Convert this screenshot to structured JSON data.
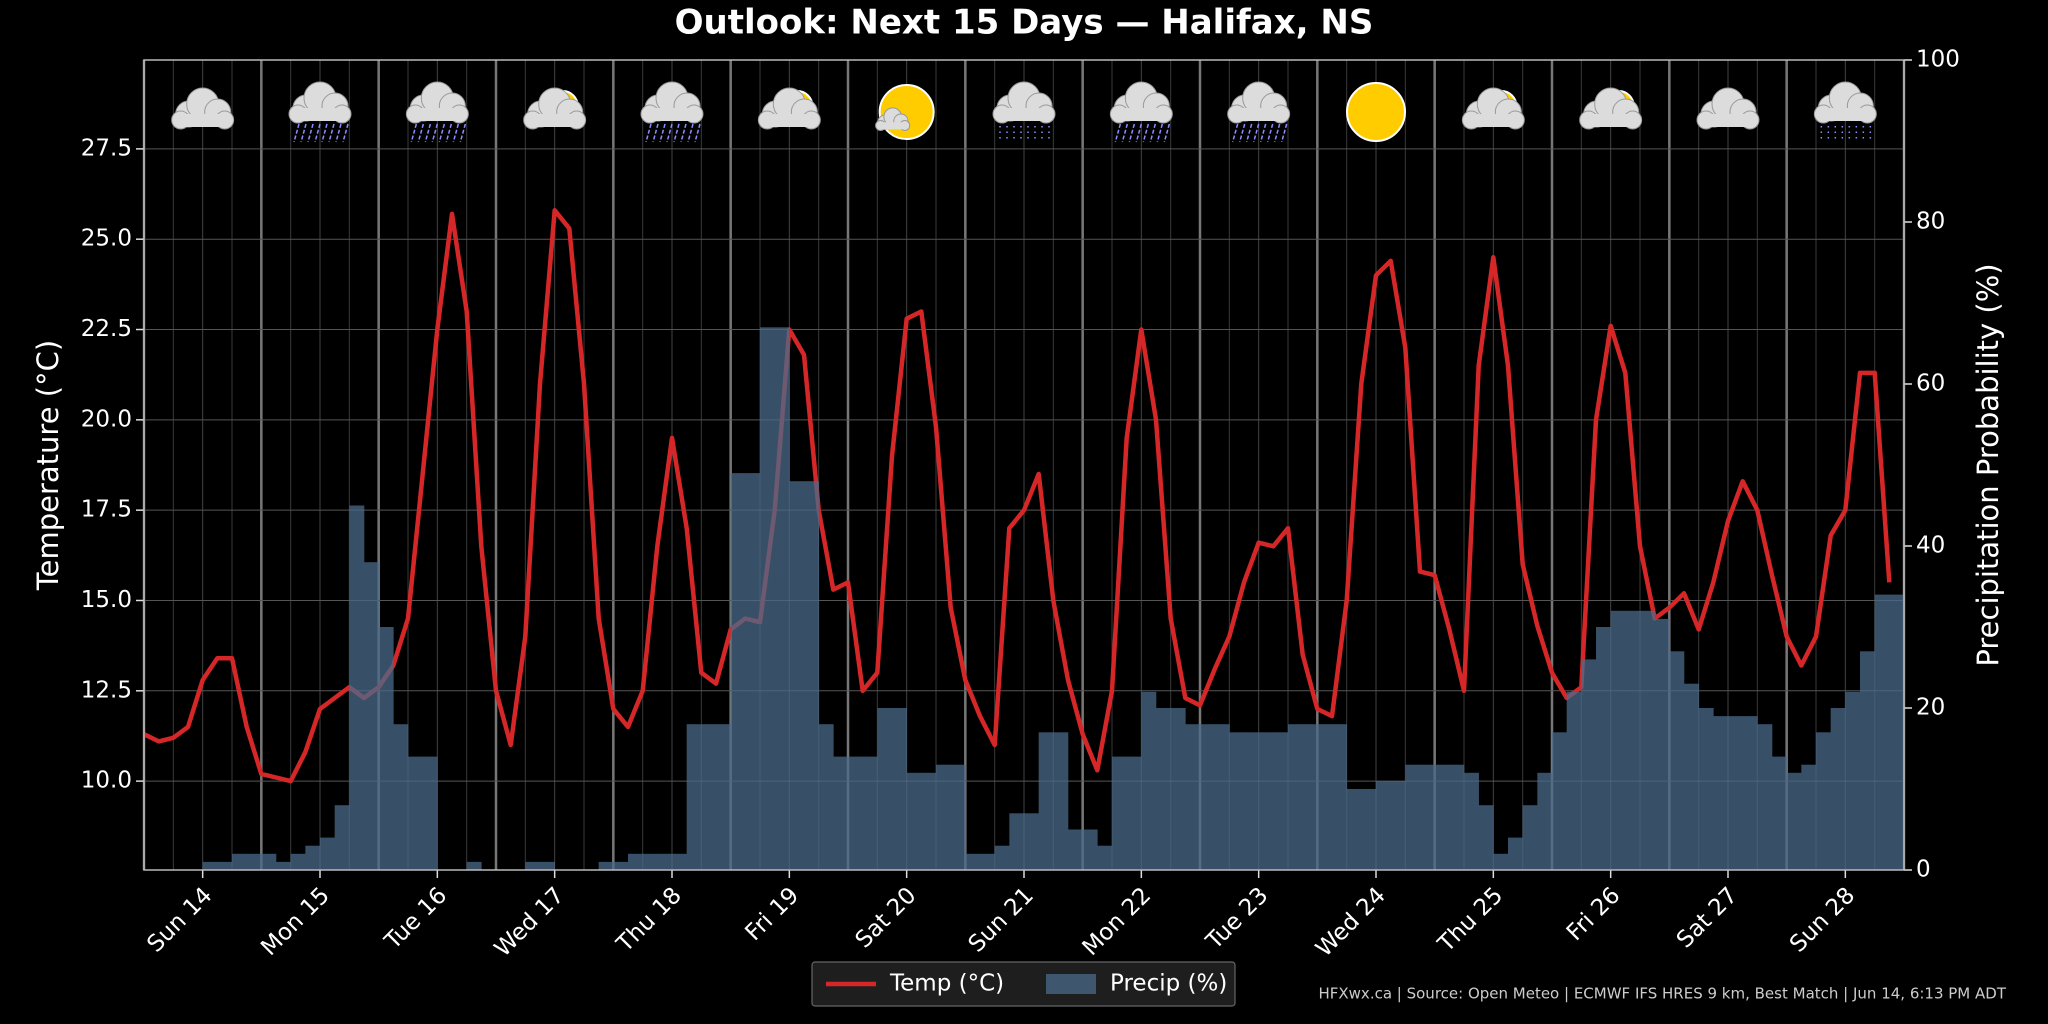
{
  "chart_data": {
    "type": "line-bar",
    "title": "Outlook: Next 15 Days — Halifax, NS",
    "ylabel": "Temperature (°C)",
    "y2label": "Precipitation Probability (%)",
    "footnote": "HFXwx.ca | Source: Open Meteo | ECMWF IFS HRES 9 km, Best Match | Jun 14, 6:13 PM ADT",
    "legend": "bottom",
    "grid": true,
    "xlim": [
      0,
      360
    ],
    "xticks": [
      {
        "value": 12,
        "label": "Sun 14"
      },
      {
        "value": 36,
        "label": "Mon 15"
      },
      {
        "value": 60,
        "label": "Tue 16"
      },
      {
        "value": 84,
        "label": "Wed 17"
      },
      {
        "value": 108,
        "label": "Thu 18"
      },
      {
        "value": 132,
        "label": "Fri 19"
      },
      {
        "value": 156,
        "label": "Sat 20"
      },
      {
        "value": 180,
        "label": "Sun 21"
      },
      {
        "value": 204,
        "label": "Mon 22"
      },
      {
        "value": 228,
        "label": "Tue 23"
      },
      {
        "value": 252,
        "label": "Wed 24"
      },
      {
        "value": 276,
        "label": "Thu 25"
      },
      {
        "value": 300,
        "label": "Fri 26"
      },
      {
        "value": 324,
        "label": "Sat 27"
      },
      {
        "value": 348,
        "label": "Sun 28"
      }
    ],
    "ylim": [
      7.54,
      29.96
    ],
    "yticks": [
      {
        "value": 10,
        "label": "10.0"
      },
      12.5,
      {
        "value": 15,
        "label": "15.0"
      },
      17.5,
      {
        "value": 20,
        "label": "20.0"
      },
      22.5,
      {
        "value": 25,
        "label": "25.0"
      },
      27.5
    ],
    "y2lim": [
      0,
      100
    ],
    "y2ticks": [
      0,
      20,
      40,
      60,
      80,
      100
    ],
    "x": [
      0,
      3,
      6,
      9,
      12,
      15,
      18,
      21,
      24,
      27,
      30,
      33,
      36,
      39,
      42,
      45,
      48,
      51,
      54,
      57,
      60,
      63,
      66,
      69,
      72,
      75,
      78,
      81,
      84,
      87,
      90,
      93,
      96,
      99,
      102,
      105,
      108,
      111,
      114,
      117,
      120,
      123,
      126,
      129,
      132,
      135,
      138,
      141,
      144,
      147,
      150,
      153,
      156,
      159,
      162,
      165,
      168,
      171,
      174,
      177,
      180,
      183,
      186,
      189,
      192,
      195,
      198,
      201,
      204,
      207,
      210,
      213,
      216,
      219,
      222,
      225,
      228,
      231,
      234,
      237,
      240,
      243,
      246,
      249,
      252,
      255,
      258,
      261,
      264,
      267,
      270,
      273,
      276,
      279,
      282,
      285,
      288,
      291,
      294,
      297,
      300,
      303,
      306,
      309,
      312,
      315,
      318,
      321,
      324,
      327,
      330,
      333,
      336,
      339,
      342,
      345,
      348,
      351,
      354,
      357
    ],
    "series": [
      {
        "name": "Temp (°C)",
        "color": "#d62728",
        "kind": "line",
        "axis": "y",
        "values": [
          11.3,
          11.1,
          11.2,
          11.5,
          12.8,
          13.4,
          13.4,
          11.5,
          10.2,
          10.1,
          10.0,
          10.8,
          12.0,
          12.3,
          12.6,
          12.3,
          12.6,
          13.2,
          14.5,
          18.5,
          22.5,
          25.7,
          23.0,
          16.5,
          12.5,
          11.0,
          14.0,
          21.0,
          25.8,
          25.3,
          21.0,
          14.5,
          12.0,
          11.5,
          12.5,
          16.5,
          19.5,
          17.0,
          13.0,
          12.7,
          14.2,
          14.5,
          14.4,
          17.5,
          22.5,
          21.8,
          17.5,
          15.3,
          15.5,
          12.5,
          13.0,
          19.0,
          22.8,
          23.0,
          19.8,
          14.8,
          12.8,
          11.8,
          11.0,
          17.0,
          17.5,
          18.5,
          15.0,
          12.8,
          11.3,
          10.3,
          12.5,
          19.5,
          22.5,
          20.0,
          14.5,
          12.3,
          12.1,
          13.1,
          14.0,
          15.5,
          16.6,
          16.5,
          17.0,
          13.5,
          12.0,
          11.8,
          15.0,
          21.0,
          24.0,
          24.4,
          22.0,
          15.8,
          15.7,
          14.2,
          12.5,
          21.5,
          24.5,
          21.5,
          16.0,
          14.3,
          13.0,
          12.3,
          12.6,
          20.0,
          22.6,
          21.3,
          16.5,
          14.5,
          14.8,
          15.2,
          14.2,
          15.5,
          17.2,
          18.3,
          17.5,
          15.7,
          14.0,
          13.2,
          14.0,
          16.8,
          17.5,
          21.3,
          21.3,
          15.5
        ]
      },
      {
        "name": "Precip (%)",
        "color": "#4a6a8a",
        "kind": "bar",
        "axis": "y2",
        "values": [
          0,
          0,
          0,
          0,
          1,
          1,
          2,
          2,
          2,
          1,
          2,
          3,
          4,
          8,
          45,
          38,
          30,
          18,
          14,
          14,
          0,
          0,
          1,
          0,
          0,
          0,
          1,
          1,
          0,
          0,
          0,
          1,
          1,
          2,
          2,
          2,
          2,
          18,
          18,
          18,
          49,
          49,
          67,
          67,
          48,
          48,
          18,
          14,
          14,
          14,
          20,
          20,
          12,
          12,
          13,
          13,
          2,
          2,
          3,
          7,
          7,
          17,
          17,
          5,
          5,
          3,
          14,
          14,
          22,
          20,
          20,
          18,
          18,
          18,
          17,
          17,
          17,
          17,
          18,
          18,
          18,
          18,
          10,
          10,
          11,
          11,
          13,
          13,
          13,
          13,
          12,
          8,
          2,
          4,
          8,
          12,
          17,
          22,
          26,
          30,
          32,
          32,
          32,
          31,
          27,
          23,
          20,
          19,
          19,
          19,
          18,
          14,
          12,
          13,
          17,
          20,
          22,
          27,
          34,
          34
        ]
      }
    ]
  }
}
